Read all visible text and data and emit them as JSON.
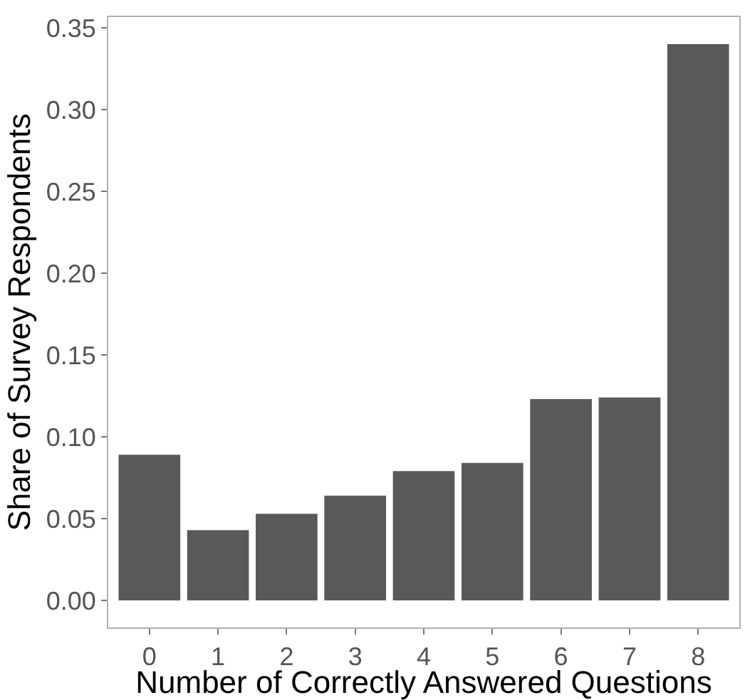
{
  "chart_data": {
    "type": "bar",
    "xlabel": "Number of Correctly Answered Questions",
    "ylabel": "Share of Survey Respondents",
    "categories": [
      "0",
      "1",
      "2",
      "3",
      "4",
      "5",
      "6",
      "7",
      "8"
    ],
    "values": [
      0.089,
      0.043,
      0.053,
      0.064,
      0.079,
      0.084,
      0.123,
      0.124,
      0.34
    ],
    "color": "#595959",
    "ylim": [
      -0.0165,
      0.3565
    ],
    "yticks": [
      {
        "value": 0,
        "label": "0.00"
      },
      {
        "value": 0.05,
        "label": "0.05"
      },
      {
        "value": 0.1,
        "label": "0.10"
      },
      {
        "value": 0.15,
        "label": "0.15"
      },
      {
        "value": 0.2,
        "label": "0.20"
      },
      {
        "value": 0.25,
        "label": "0.25"
      },
      {
        "value": 0.3,
        "label": "0.30"
      },
      {
        "value": 0.35,
        "label": "0.35"
      }
    ]
  }
}
